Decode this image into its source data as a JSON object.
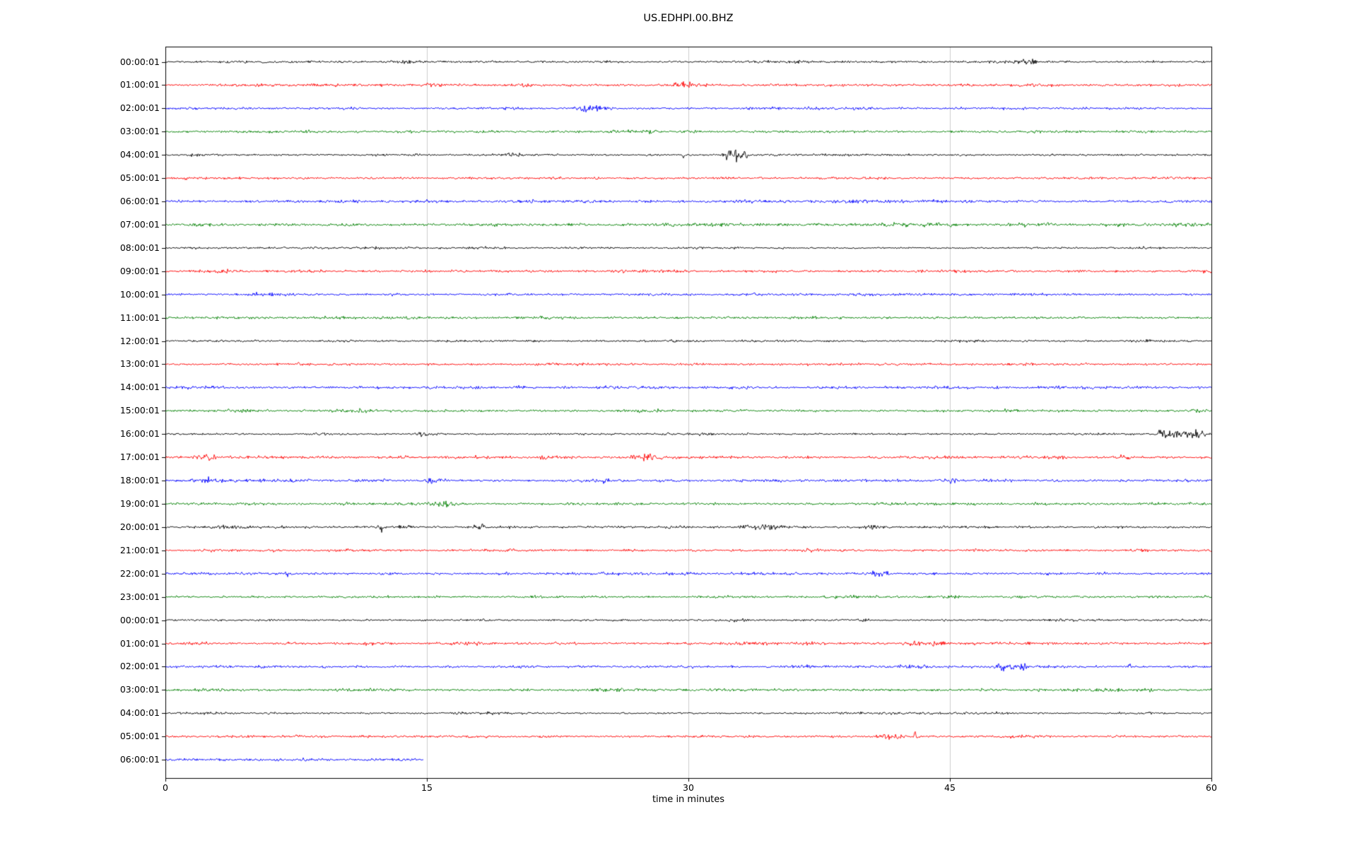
{
  "page": {
    "background": "#ffffff"
  },
  "chart_data": {
    "type": "line",
    "title": "US.EDHPI.00.BHZ",
    "subtitle": "",
    "xlabel": "time in minutes",
    "ylabel": "",
    "xlim": [
      0,
      60
    ],
    "xticks": [
      0,
      15,
      30,
      45,
      60
    ],
    "grid_x": [
      15,
      30,
      45
    ],
    "grid_on": true,
    "grid_color": "#cccccc",
    "axis_color": "#000000",
    "background_color": "#ffffff",
    "trace_color_cycle": [
      "#000000",
      "#ff0000",
      "#0000ff",
      "#008000"
    ],
    "traces": [
      {
        "label": "00:00:01",
        "color": "#000000",
        "amp": 1.6,
        "dur": 60,
        "events": [
          {
            "t": 49.7,
            "a": 4,
            "w": 0.3
          }
        ]
      },
      {
        "label": "01:00:01",
        "color": "#ff0000",
        "amp": 1.8,
        "dur": 60,
        "events": [
          {
            "t": 15.4,
            "a": 3,
            "w": 0.4
          },
          {
            "t": 20.5,
            "a": 2.5,
            "w": 0.3
          },
          {
            "t": 29.4,
            "a": 4,
            "w": 0.3
          },
          {
            "t": 30.3,
            "a": 5,
            "w": 0.4
          }
        ]
      },
      {
        "label": "02:00:01",
        "color": "#0000ff",
        "amp": 1.6,
        "dur": 60,
        "events": [
          {
            "t": 24.0,
            "a": 6,
            "w": 0.3
          },
          {
            "t": 24.9,
            "a": 5,
            "w": 0.3
          },
          {
            "t": 40.0,
            "a": 1.5,
            "w": 0.6
          }
        ]
      },
      {
        "label": "03:00:01",
        "color": "#008000",
        "amp": 1.7,
        "dur": 60,
        "events": []
      },
      {
        "label": "04:00:01",
        "color": "#000000",
        "amp": 1.5,
        "dur": 60,
        "events": [
          {
            "t": 20.0,
            "a": 2.5,
            "w": 0.3
          },
          {
            "t": 29.7,
            "a": 9,
            "w": 0.06
          },
          {
            "t": 32.4,
            "a": 13,
            "w": 0.25
          },
          {
            "t": 33.1,
            "a": 7,
            "w": 0.4
          }
        ]
      },
      {
        "label": "05:00:01",
        "color": "#ff0000",
        "amp": 1.7,
        "dur": 60,
        "events": []
      },
      {
        "label": "06:00:01",
        "color": "#0000ff",
        "amp": 2.0,
        "dur": 60,
        "events": []
      },
      {
        "label": "07:00:01",
        "color": "#008000",
        "amp": 2.0,
        "dur": 60,
        "events": []
      },
      {
        "label": "08:00:01",
        "color": "#000000",
        "amp": 1.4,
        "dur": 60,
        "events": []
      },
      {
        "label": "09:00:01",
        "color": "#ff0000",
        "amp": 1.8,
        "dur": 60,
        "events": []
      },
      {
        "label": "10:00:01",
        "color": "#0000ff",
        "amp": 1.7,
        "dur": 60,
        "events": []
      },
      {
        "label": "11:00:01",
        "color": "#008000",
        "amp": 1.7,
        "dur": 60,
        "events": []
      },
      {
        "label": "12:00:01",
        "color": "#000000",
        "amp": 1.5,
        "dur": 60,
        "events": []
      },
      {
        "label": "13:00:01",
        "color": "#ff0000",
        "amp": 1.7,
        "dur": 60,
        "events": []
      },
      {
        "label": "14:00:01",
        "color": "#0000ff",
        "amp": 1.9,
        "dur": 60,
        "events": [
          {
            "t": 2.0,
            "a": 1.5,
            "w": 1.0
          }
        ]
      },
      {
        "label": "15:00:01",
        "color": "#008000",
        "amp": 1.8,
        "dur": 60,
        "events": []
      },
      {
        "label": "16:00:01",
        "color": "#000000",
        "amp": 1.5,
        "dur": 60,
        "events": [
          {
            "t": 9.0,
            "a": 2,
            "w": 0.3
          },
          {
            "t": 14.8,
            "a": 5,
            "w": 0.3
          },
          {
            "t": 57.2,
            "a": 11,
            "w": 0.15
          },
          {
            "t": 58.0,
            "a": 6,
            "w": 0.6
          },
          {
            "t": 59.2,
            "a": 5,
            "w": 0.5
          }
        ]
      },
      {
        "label": "17:00:01",
        "color": "#ff0000",
        "amp": 1.9,
        "dur": 60,
        "events": [
          {
            "t": 2.5,
            "a": 4,
            "w": 0.4
          },
          {
            "t": 22.0,
            "a": 3,
            "w": 0.4
          },
          {
            "t": 27.6,
            "a": 5,
            "w": 0.5
          },
          {
            "t": 51.5,
            "a": 3,
            "w": 0.3
          },
          {
            "t": 55.0,
            "a": 4,
            "w": 0.2
          }
        ]
      },
      {
        "label": "18:00:01",
        "color": "#0000ff",
        "amp": 1.9,
        "dur": 60,
        "events": [
          {
            "t": 2.3,
            "a": 4,
            "w": 0.3
          },
          {
            "t": 5.5,
            "a": 3,
            "w": 0.2
          },
          {
            "t": 15.5,
            "a": 5,
            "w": 0.4
          },
          {
            "t": 25.0,
            "a": 4,
            "w": 0.3
          },
          {
            "t": 45.0,
            "a": 3,
            "w": 0.3
          }
        ]
      },
      {
        "label": "19:00:01",
        "color": "#008000",
        "amp": 1.8,
        "dur": 60,
        "events": [
          {
            "t": 16.0,
            "a": 4,
            "w": 0.4
          }
        ]
      },
      {
        "label": "20:00:01",
        "color": "#000000",
        "amp": 1.7,
        "dur": 60,
        "events": [
          {
            "t": 4.0,
            "a": 2.5,
            "w": 1.0
          },
          {
            "t": 12.4,
            "a": 7,
            "w": 0.06
          },
          {
            "t": 14.0,
            "a": 3,
            "w": 0.1
          },
          {
            "t": 18.0,
            "a": 2.5,
            "w": 0.3
          },
          {
            "t": 34.5,
            "a": 4,
            "w": 0.8
          },
          {
            "t": 40.5,
            "a": 4,
            "w": 0.4
          }
        ]
      },
      {
        "label": "21:00:01",
        "color": "#ff0000",
        "amp": 1.7,
        "dur": 60,
        "events": [
          {
            "t": 37.0,
            "a": 3.5,
            "w": 0.3
          }
        ]
      },
      {
        "label": "22:00:01",
        "color": "#0000ff",
        "amp": 1.8,
        "dur": 60,
        "events": [
          {
            "t": 7.0,
            "a": 4,
            "w": 0.15
          },
          {
            "t": 19.5,
            "a": 2.5,
            "w": 0.2
          },
          {
            "t": 40.7,
            "a": 9,
            "w": 0.15
          },
          {
            "t": 41.2,
            "a": 4,
            "w": 0.3
          }
        ]
      },
      {
        "label": "23:00:01",
        "color": "#008000",
        "amp": 1.7,
        "dur": 60,
        "events": [
          {
            "t": 45.0,
            "a": 3,
            "w": 0.3
          }
        ]
      },
      {
        "label": "00:00:01",
        "color": "#000000",
        "amp": 1.5,
        "dur": 60,
        "events": [
          {
            "t": 18.3,
            "a": 5,
            "w": 0.07
          },
          {
            "t": 33.0,
            "a": 2,
            "w": 0.5
          },
          {
            "t": 40.0,
            "a": 2.5,
            "w": 0.3
          }
        ]
      },
      {
        "label": "01:00:01",
        "color": "#ff0000",
        "amp": 1.8,
        "dur": 60,
        "events": [
          {
            "t": 43.0,
            "a": 6,
            "w": 0.35
          },
          {
            "t": 44.2,
            "a": 5,
            "w": 0.25
          }
        ]
      },
      {
        "label": "02:00:01",
        "color": "#0000ff",
        "amp": 1.7,
        "dur": 60,
        "events": [
          {
            "t": 48.0,
            "a": 6,
            "w": 0.4
          },
          {
            "t": 49.0,
            "a": 5,
            "w": 0.3
          },
          {
            "t": 55.3,
            "a": 7,
            "w": 0.08
          }
        ]
      },
      {
        "label": "03:00:01",
        "color": "#008000",
        "amp": 1.8,
        "dur": 60,
        "events": [
          {
            "t": 25.0,
            "a": 2,
            "w": 0.5
          }
        ]
      },
      {
        "label": "04:00:01",
        "color": "#000000",
        "amp": 1.4,
        "dur": 60,
        "events": []
      },
      {
        "label": "05:00:01",
        "color": "#ff0000",
        "amp": 1.7,
        "dur": 60,
        "events": [
          {
            "t": 41.8,
            "a": 4,
            "w": 0.6
          },
          {
            "t": 43.0,
            "a": 13,
            "w": 0.12
          }
        ]
      },
      {
        "label": "06:00:01",
        "color": "#0000ff",
        "amp": 1.9,
        "dur": 14.8,
        "events": []
      }
    ]
  }
}
